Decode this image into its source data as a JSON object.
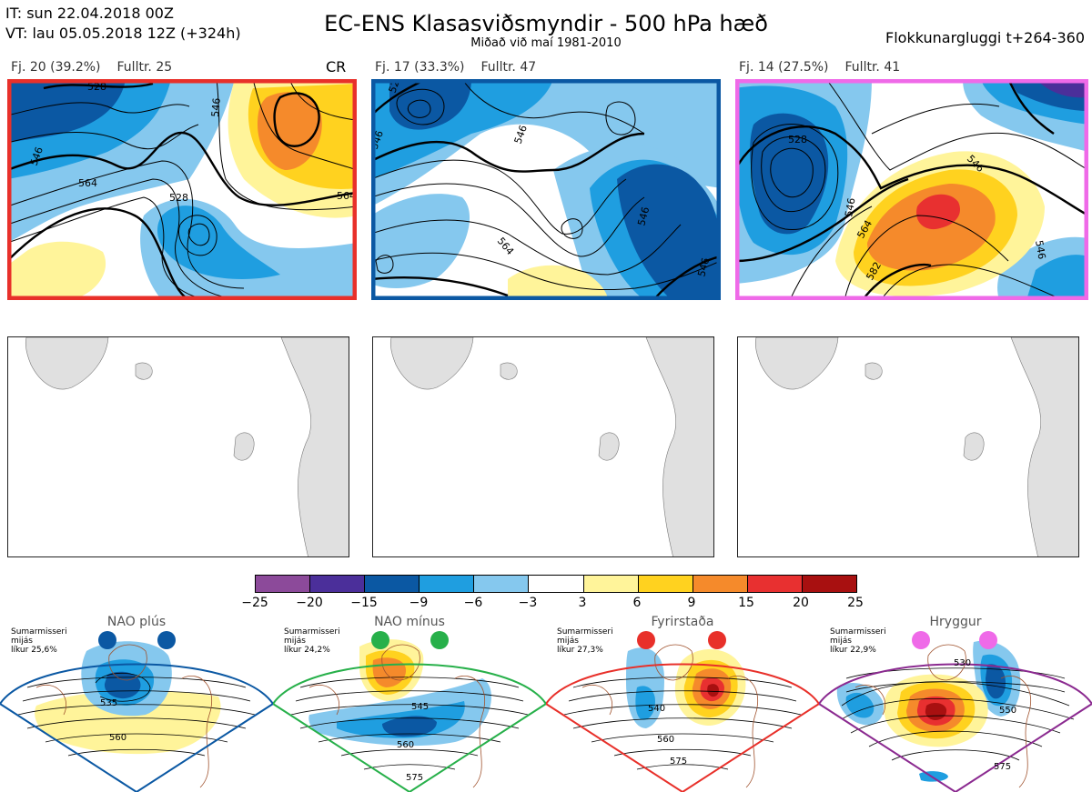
{
  "header": {
    "it_line": "IT: sun 22.04.2018 00Z",
    "vt_line": "VT: lau 05.05.2018 12Z  (+324h)",
    "title": "EC-ENS Klasasviðsmyndir - 500 hPa hæð",
    "subtitle": "Miðað við maí 1981-2010",
    "window": "Flokkunargluggi t+264-360"
  },
  "clusters": [
    {
      "count": "Fj. 20 (39.2%)",
      "representative": "Fulltr. 25",
      "tag": "CR",
      "frame_color": "#e8302a",
      "contours": [
        "528",
        "546",
        "564",
        "546",
        "564",
        "528"
      ]
    },
    {
      "count": "Fj. 17 (33.3%)",
      "representative": "Fulltr. 47",
      "tag": "",
      "frame_color": "#0b58a3",
      "contours": [
        "528",
        "546",
        "564",
        "546",
        "546",
        "546"
      ]
    },
    {
      "count": "Fj. 14 (27.5%)",
      "representative": "Fulltr. 41",
      "tag": "",
      "frame_color": "#ef6ae8",
      "contours": [
        "528",
        "546",
        "564",
        "582",
        "546",
        "546"
      ]
    }
  ],
  "colorbar": {
    "ticks": [
      "−25",
      "−20",
      "−15",
      "−9",
      "−6",
      "−3",
      "3",
      "6",
      "9",
      "15",
      "20",
      "25"
    ],
    "colors": [
      "#8c4a9a",
      "#4b2f9a",
      "#0b58a3",
      "#1f9ee0",
      "#85c8ee",
      "#ffffff",
      "#fff49a",
      "#ffd21f",
      "#f58a2b",
      "#e83030",
      "#a81010"
    ]
  },
  "regimes": [
    {
      "title": "NAO plús",
      "season": "Sumarmisseri",
      "period": "mijás",
      "likelihood": "líkur 25,6%",
      "dot_color": "#0b58a3",
      "frame_color": "#0b58a3",
      "labels": [
        "535",
        "560"
      ]
    },
    {
      "title": "NAO mínus",
      "season": "Sumarmisseri",
      "period": "mijás",
      "likelihood": "líkur 24,2%",
      "dot_color": "#27b04a",
      "frame_color": "#27b04a",
      "labels": [
        "545",
        "560",
        "575"
      ]
    },
    {
      "title": "Fyrirstaða",
      "season": "Sumarmisseri",
      "period": "mijás",
      "likelihood": "líkur 27,3%",
      "dot_color": "#e8302a",
      "frame_color": "#e8302a",
      "labels": [
        "540",
        "560",
        "575"
      ]
    },
    {
      "title": "Hryggur",
      "season": "Sumarmisseri",
      "period": "mijás",
      "likelihood": "líkur 22,9%",
      "dot_color": "#ef6ae8",
      "frame_color": "#8b2a90",
      "labels": [
        "530",
        "550",
        "575"
      ]
    }
  ]
}
